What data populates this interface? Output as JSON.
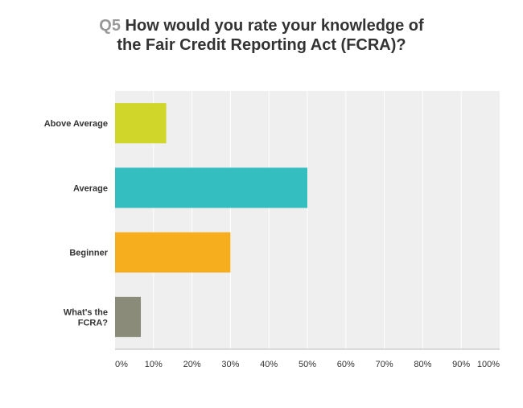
{
  "title": {
    "qnum": "Q5",
    "line1": "How would you rate your knowledge of",
    "line2": "the Fair Credit Reporting Act (FCRA)?"
  },
  "chart_data": {
    "type": "bar",
    "orientation": "horizontal",
    "categories": [
      [
        "Above Average"
      ],
      [
        "Average"
      ],
      [
        "Beginner"
      ],
      [
        "What's the",
        "FCRA?"
      ]
    ],
    "values": [
      13.3,
      50.0,
      30.0,
      6.7
    ],
    "unit": "%",
    "xlim": [
      0,
      100
    ],
    "ticks": [
      "0%",
      "10%",
      "20%",
      "30%",
      "40%",
      "50%",
      "60%",
      "70%",
      "80%",
      "90%",
      "100%"
    ],
    "colors": [
      "#d1d62a",
      "#34bec0",
      "#f6ae1f",
      "#8b8b7a"
    ],
    "grid": true,
    "legend": "none"
  }
}
